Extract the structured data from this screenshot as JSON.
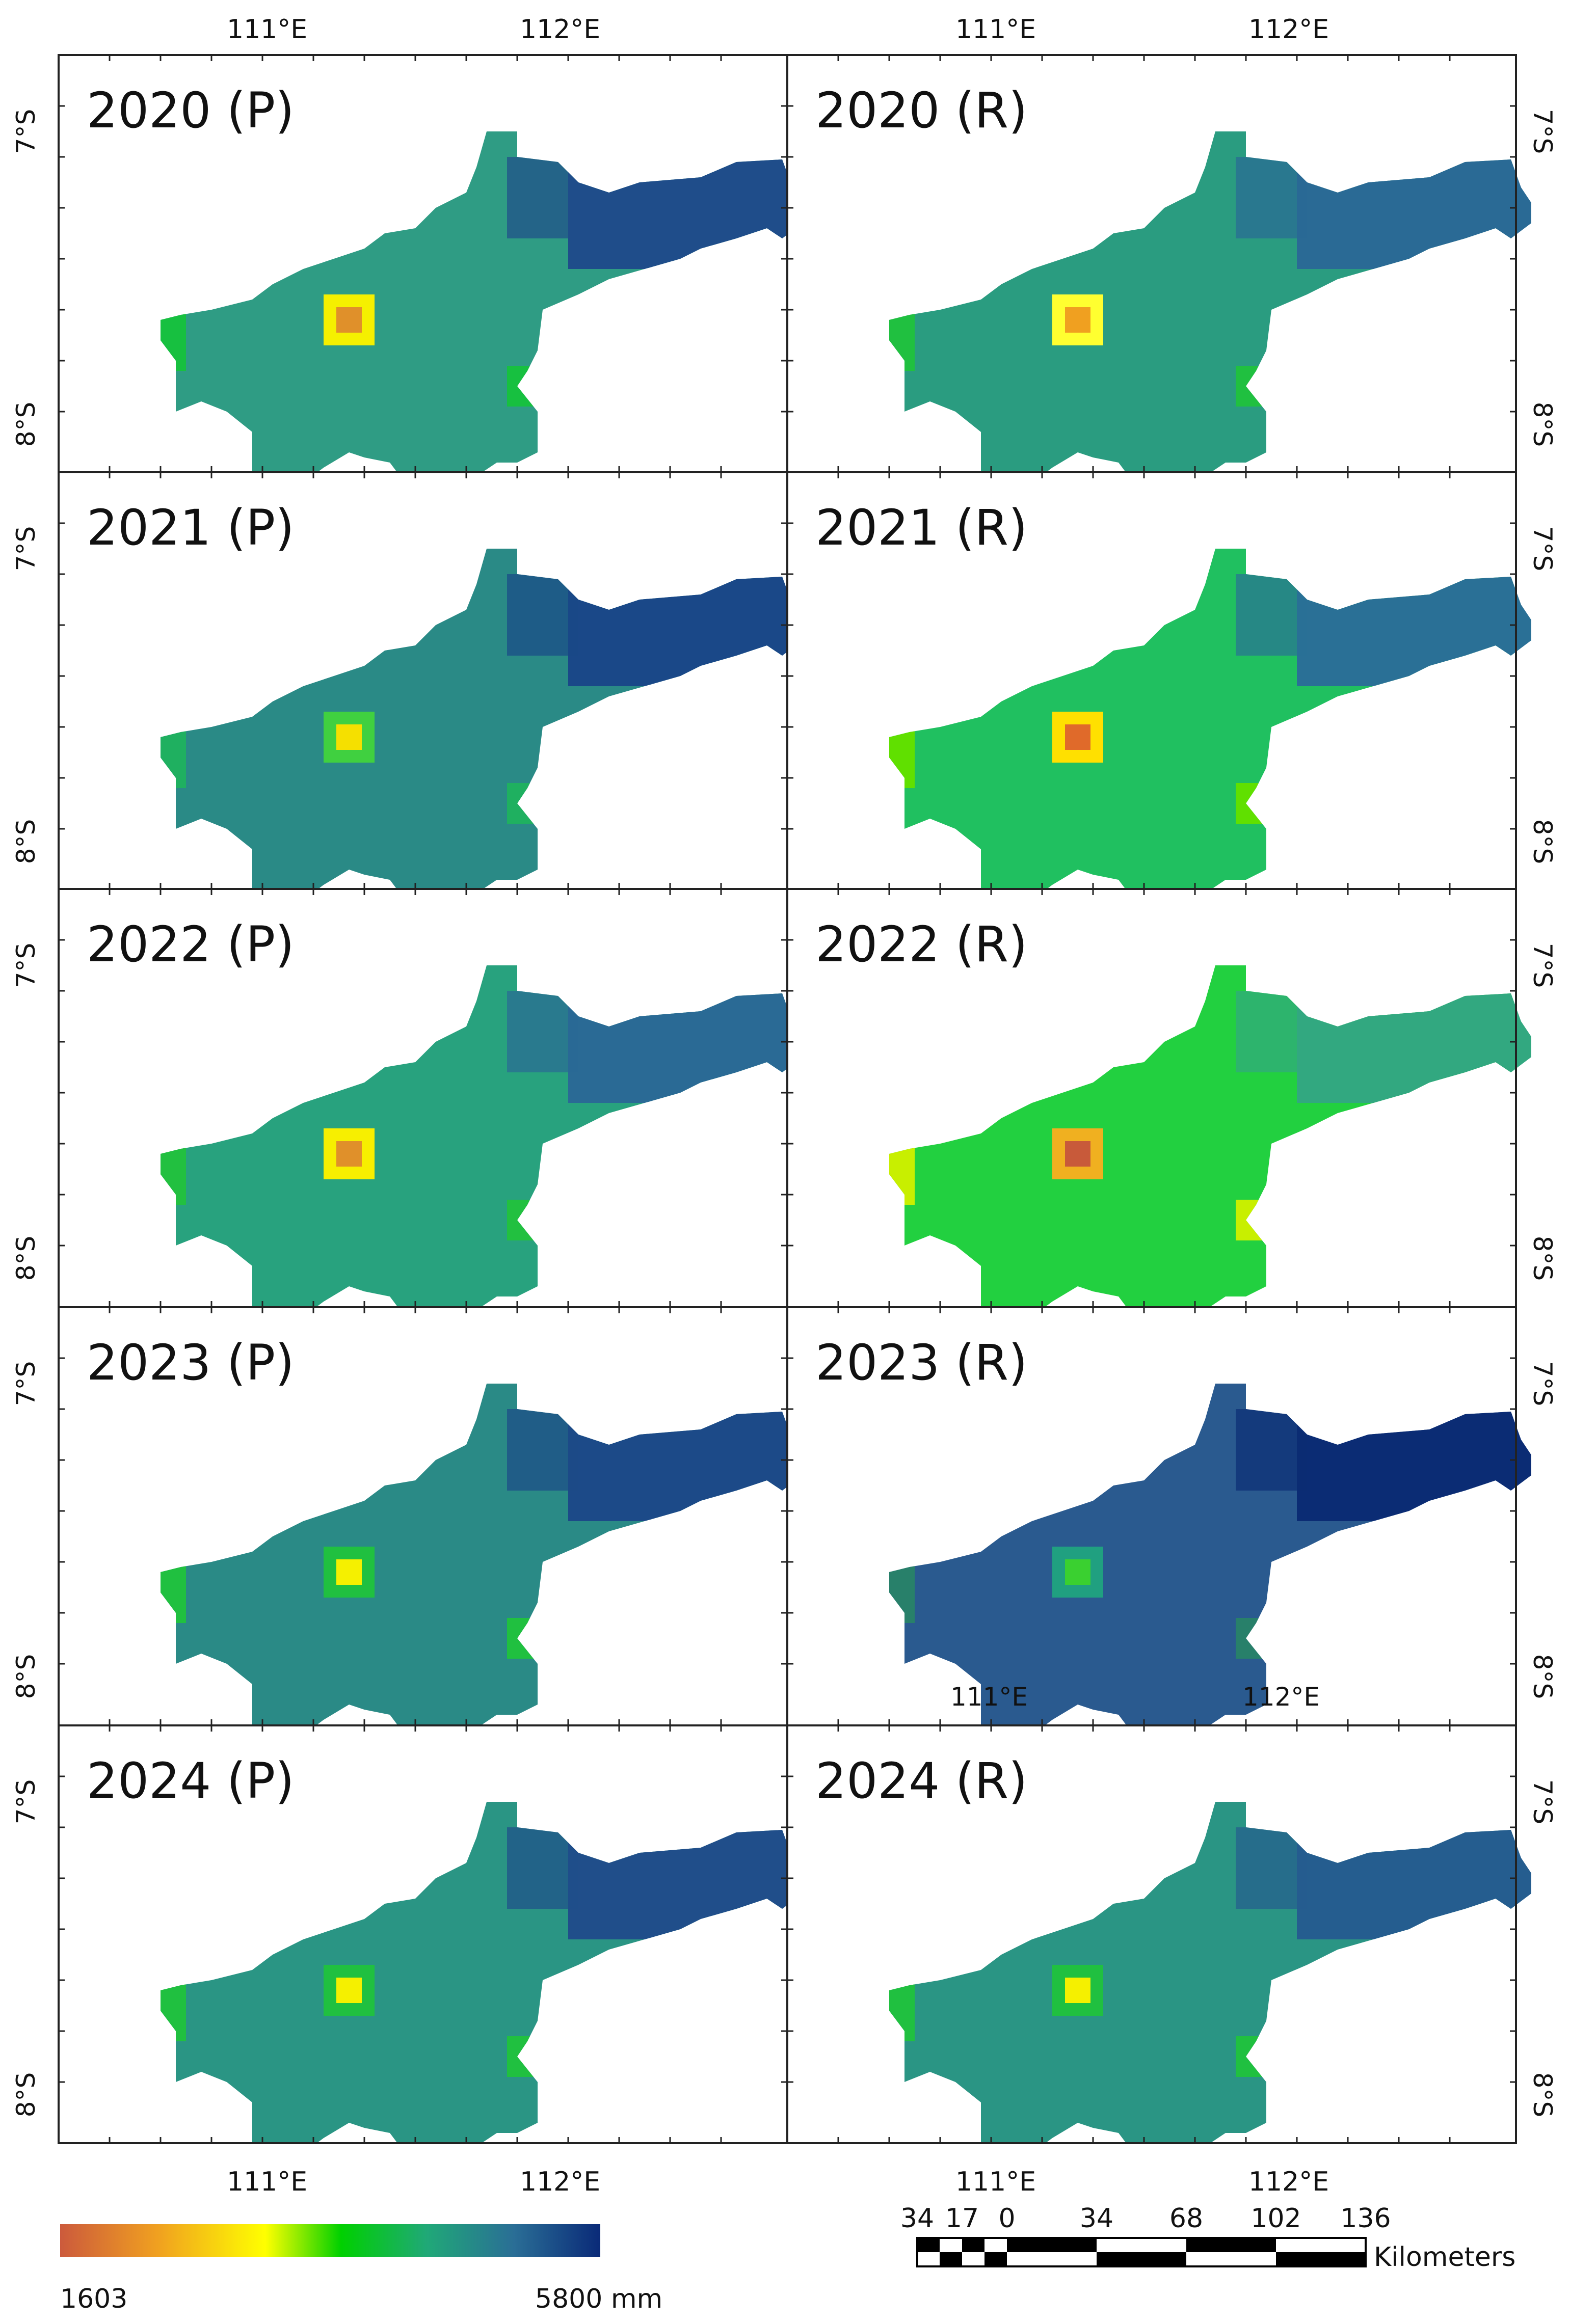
{
  "map": {
    "lon_labels": [
      "111°E",
      "112°E"
    ],
    "lat_labels": [
      "7°S",
      "8°S"
    ],
    "inset_lon_labels": [
      "111°E",
      "112°E"
    ],
    "panels": [
      {
        "label": "2020 (P)"
      },
      {
        "label": "2020 (R)"
      },
      {
        "label": "2021 (P)"
      },
      {
        "label": "2021 (R)"
      },
      {
        "label": "2022 (P)"
      },
      {
        "label": "2022 (R)"
      },
      {
        "label": "2023 (P)"
      },
      {
        "label": "2023 (R)"
      },
      {
        "label": "2024 (P)"
      },
      {
        "label": "2024 (R)"
      }
    ]
  },
  "legend": {
    "min_label": "1603",
    "max_label": "5800 mm",
    "colors": [
      "#cc5a3c",
      "#f0a020",
      "#ffff00",
      "#00d000",
      "#20a878",
      "#2a6e96",
      "#0a2a78"
    ]
  },
  "scale_bar": {
    "ticks": [
      "34",
      "17",
      "0",
      "34",
      "68",
      "102",
      "136"
    ],
    "unit": "Kilometers"
  }
}
